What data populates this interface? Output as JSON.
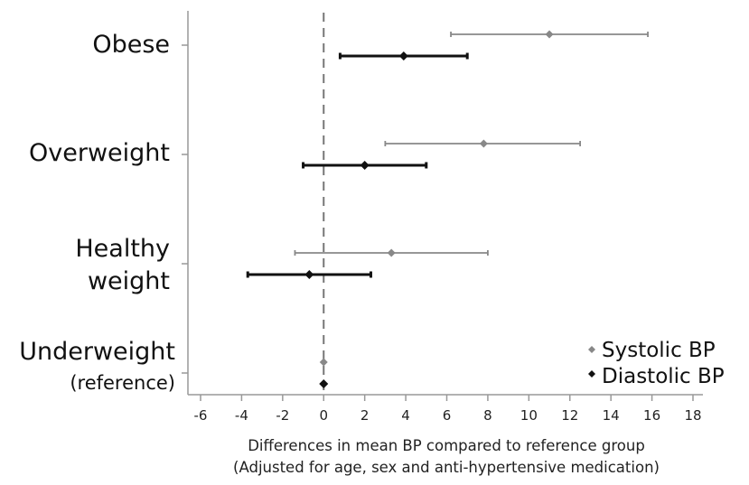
{
  "chart_data": {
    "type": "forest",
    "categories": [
      {
        "label": "Obese",
        "sublabel": ""
      },
      {
        "label": "Overweight",
        "sublabel": ""
      },
      {
        "label": "Healthy",
        "sublabel": "weight"
      },
      {
        "label": "Underweight",
        "sublabel": "(reference)"
      }
    ],
    "series": [
      {
        "name": "Systolic BP",
        "color": "#888888",
        "points": [
          {
            "category": "Obese",
            "estimate": 11.0,
            "lower": 6.2,
            "upper": 15.8
          },
          {
            "category": "Overweight",
            "estimate": 7.8,
            "lower": 3.0,
            "upper": 12.5
          },
          {
            "category": "Healthy weight",
            "estimate": 3.3,
            "lower": -1.4,
            "upper": 8.0
          },
          {
            "category": "Underweight (reference)",
            "estimate": 0,
            "lower": 0,
            "upper": 0
          }
        ]
      },
      {
        "name": "Diastolic BP",
        "color": "#111111",
        "points": [
          {
            "category": "Obese",
            "estimate": 3.9,
            "lower": 0.8,
            "upper": 7.0
          },
          {
            "category": "Overweight",
            "estimate": 2.0,
            "lower": -1.0,
            "upper": 5.0
          },
          {
            "category": "Healthy weight",
            "estimate": -0.7,
            "lower": -3.7,
            "upper": 2.3
          },
          {
            "category": "Underweight (reference)",
            "estimate": 0,
            "lower": 0,
            "upper": 0
          }
        ]
      }
    ],
    "xlim": [
      -6,
      18
    ],
    "xticks": [
      -6,
      -4,
      -2,
      0,
      2,
      4,
      6,
      8,
      10,
      12,
      14,
      16,
      18
    ],
    "reference_line": 0,
    "xlabel_line1": "Differences in mean BP compared to reference group",
    "xlabel_line2": "(Adjusted for age, sex and anti-hypertensive medication)",
    "legend_placement": "bottom-right",
    "grid": false
  }
}
